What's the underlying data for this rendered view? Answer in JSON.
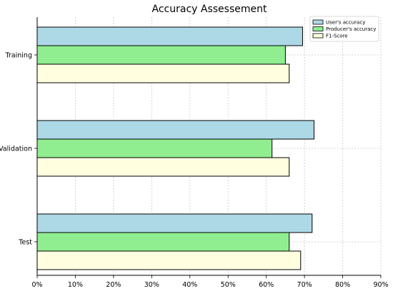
{
  "chart_data": {
    "type": "bar",
    "orientation": "horizontal",
    "title": "Accuracy Assessement",
    "xlabel": "",
    "ylabel": "",
    "categories": [
      "Training",
      "Validation",
      "Test"
    ],
    "series": [
      {
        "name": "User's accuracy",
        "values": [
          69.5,
          72.5,
          72.0
        ],
        "color": "#add8e6"
      },
      {
        "name": "Producer's accuracy",
        "values": [
          65.0,
          61.5,
          66.0
        ],
        "color": "#90ee90"
      },
      {
        "name": "F1-Score",
        "values": [
          66.0,
          66.0,
          69.0
        ],
        "color": "#ffffe0"
      }
    ],
    "xlim": [
      0,
      90
    ],
    "xticks": [
      "0%",
      "10%",
      "20%",
      "30%",
      "40%",
      "50%",
      "60%",
      "70%",
      "80%",
      "90%"
    ],
    "grid": true,
    "legend_position": "top-right"
  }
}
